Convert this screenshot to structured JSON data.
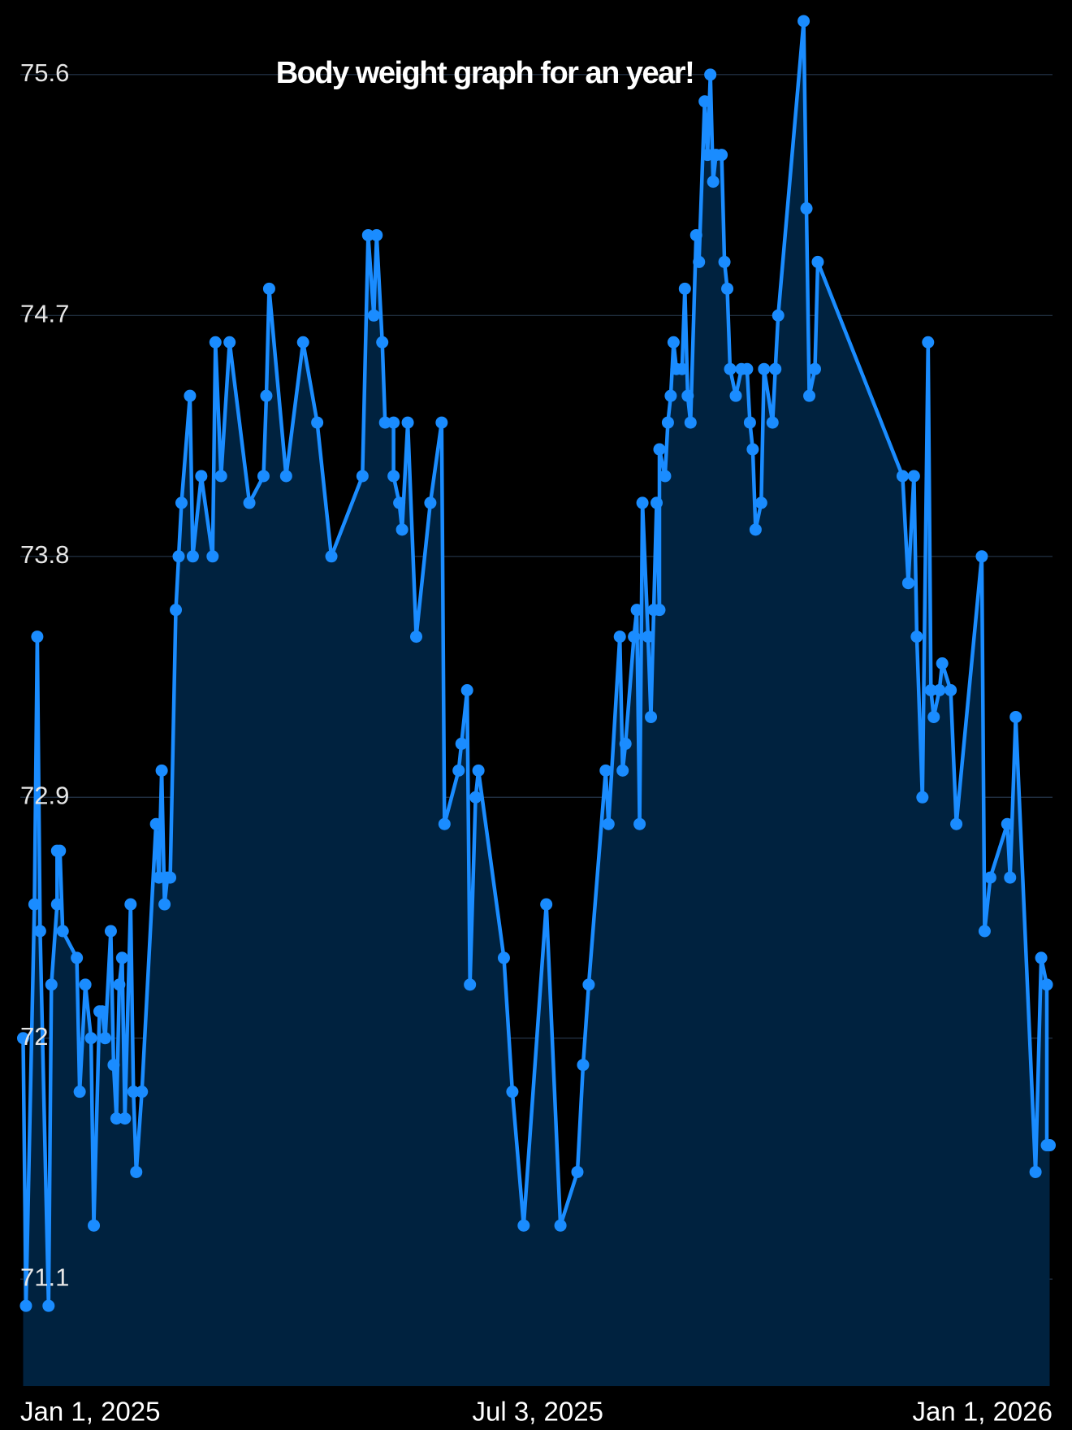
{
  "chart_data": {
    "type": "line",
    "title": "Body weight graph for an year!",
    "color": "#1a8cff",
    "area_color": "#00223f",
    "grid": true,
    "markers": true,
    "xlim": [
      "2025-01-01",
      "2026-01-01"
    ],
    "xticks": [
      {
        "value": "2025-01-01",
        "label": "Jan 1, 2025"
      },
      {
        "value": "2025-07-03",
        "label": "Jul 3, 2025"
      },
      {
        "value": "2026-01-01",
        "label": "Jan 1, 2026"
      }
    ],
    "ylim": [
      70.7,
      75.9
    ],
    "yticks": [
      71.1,
      72,
      72.9,
      73.8,
      74.7,
      75.6
    ],
    "x": [
      "2025-01-02",
      "2025-01-03",
      "2025-01-06",
      "2025-01-07",
      "2025-01-08",
      "2025-01-11",
      "2025-01-12",
      "2025-01-14",
      "2025-01-14",
      "2025-01-15",
      "2025-01-16",
      "2025-01-21",
      "2025-01-22",
      "2025-01-24",
      "2025-01-26",
      "2025-01-27",
      "2025-01-29",
      "2025-01-30",
      "2025-01-31",
      "2025-02-02",
      "2025-02-03",
      "2025-02-04",
      "2025-02-05",
      "2025-02-06",
      "2025-02-07",
      "2025-02-09",
      "2025-02-10",
      "2025-02-11",
      "2025-02-13",
      "2025-02-18",
      "2025-02-19",
      "2025-02-20",
      "2025-02-21",
      "2025-02-22",
      "2025-02-23",
      "2025-02-25",
      "2025-02-26",
      "2025-02-27",
      "2025-03-02",
      "2025-03-03",
      "2025-03-06",
      "2025-03-10",
      "2025-03-11",
      "2025-03-13",
      "2025-03-16",
      "2025-03-23",
      "2025-03-28",
      "2025-03-29",
      "2025-03-30",
      "2025-04-05",
      "2025-04-11",
      "2025-04-16",
      "2025-04-21",
      "2025-05-02",
      "2025-05-04",
      "2025-05-06",
      "2025-05-07",
      "2025-05-09",
      "2025-05-10",
      "2025-05-13",
      "2025-05-13",
      "2025-05-15",
      "2025-05-16",
      "2025-05-18",
      "2025-05-21",
      "2025-05-26",
      "2025-05-30",
      "2025-05-31",
      "2025-06-05",
      "2025-06-06",
      "2025-06-08",
      "2025-06-09",
      "2025-06-11",
      "2025-06-12",
      "2025-06-21",
      "2025-06-24",
      "2025-06-28",
      "2025-07-06",
      "2025-07-11",
      "2025-07-17",
      "2025-07-19",
      "2025-07-21",
      "2025-07-27",
      "2025-07-28",
      "2025-08-01",
      "2025-08-02",
      "2025-08-03",
      "2025-08-06",
      "2025-08-07",
      "2025-08-08",
      "2025-08-09",
      "2025-08-11",
      "2025-08-12",
      "2025-08-13",
      "2025-08-14",
      "2025-08-15",
      "2025-08-15",
      "2025-08-17",
      "2025-08-18",
      "2025-08-19",
      "2025-08-20",
      "2025-08-21",
      "2025-08-23",
      "2025-08-24",
      "2025-08-25",
      "2025-08-26",
      "2025-08-28",
      "2025-08-29",
      "2025-08-31",
      "2025-09-01",
      "2025-09-02",
      "2025-09-03",
      "2025-09-04",
      "2025-09-06",
      "2025-09-07",
      "2025-09-08",
      "2025-09-09",
      "2025-09-11",
      "2025-09-13",
      "2025-09-15",
      "2025-09-16",
      "2025-09-17",
      "2025-09-18",
      "2025-09-20",
      "2025-09-21",
      "2025-09-24",
      "2025-09-25",
      "2025-09-26",
      "2025-10-05",
      "2025-10-06",
      "2025-10-07",
      "2025-10-09",
      "2025-10-10",
      "2025-11-09",
      "2025-11-11",
      "2025-11-13",
      "2025-11-14",
      "2025-11-16",
      "2025-11-18",
      "2025-11-19",
      "2025-11-20",
      "2025-11-22",
      "2025-11-23",
      "2025-11-26",
      "2025-11-28",
      "2025-12-07",
      "2025-12-08",
      "2025-12-10",
      "2025-12-16",
      "2025-12-17",
      "2025-12-19",
      "2025-12-26",
      "2025-12-28",
      "2025-12-30",
      "2025-12-30",
      "2025-12-31"
    ],
    "values": [
      72.0,
      71.0,
      72.5,
      73.5,
      72.4,
      71.0,
      72.2,
      72.5,
      72.7,
      72.7,
      72.4,
      72.3,
      71.8,
      72.2,
      72.0,
      71.3,
      72.1,
      72.1,
      72.0,
      72.4,
      71.9,
      71.7,
      72.2,
      72.3,
      71.7,
      72.5,
      71.8,
      71.5,
      71.8,
      72.8,
      72.6,
      73.0,
      72.5,
      72.6,
      72.6,
      73.6,
      73.8,
      74.0,
      74.4,
      73.8,
      74.1,
      73.8,
      74.6,
      74.1,
      74.6,
      74.0,
      74.1,
      74.4,
      74.8,
      74.1,
      74.6,
      74.3,
      73.8,
      74.1,
      75.0,
      74.7,
      75.0,
      74.6,
      74.3,
      74.3,
      74.1,
      74.0,
      73.9,
      74.3,
      73.5,
      74.0,
      74.3,
      72.8,
      73.0,
      73.1,
      73.3,
      72.2,
      72.9,
      73.0,
      72.3,
      71.8,
      71.3,
      72.5,
      71.3,
      71.5,
      71.9,
      72.2,
      73.0,
      72.8,
      73.5,
      73.0,
      73.1,
      73.5,
      73.6,
      72.8,
      74.0,
      73.5,
      73.2,
      73.6,
      74.0,
      73.6,
      74.2,
      74.1,
      74.3,
      74.4,
      74.6,
      74.5,
      74.5,
      74.8,
      74.4,
      74.3,
      75.0,
      74.9,
      75.5,
      75.3,
      75.6,
      75.2,
      75.3,
      75.3,
      74.9,
      74.8,
      74.5,
      74.4,
      74.5,
      74.5,
      74.3,
      74.2,
      73.9,
      74.0,
      74.5,
      74.3,
      74.5,
      74.7,
      75.8,
      75.1,
      74.4,
      74.5,
      74.9,
      74.1,
      73.7,
      74.1,
      73.5,
      72.9,
      74.6,
      73.3,
      73.2,
      73.3,
      73.4,
      73.3,
      72.8,
      73.8,
      72.4,
      72.6,
      72.8,
      72.6,
      73.2,
      71.5,
      72.3,
      72.2,
      71.6,
      71.6
    ]
  }
}
